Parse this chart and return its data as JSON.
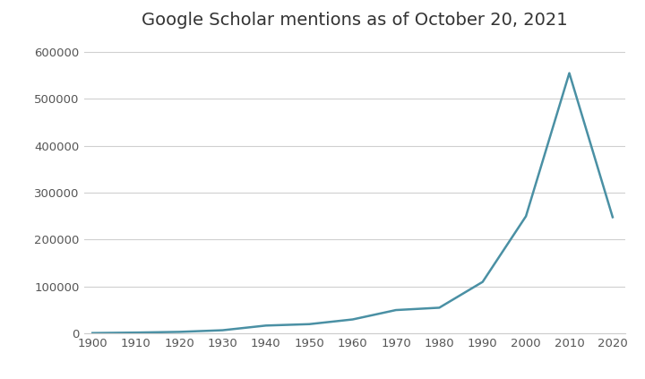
{
  "title": "Google Scholar mentions as of October 20, 2021",
  "title_fontsize": 14,
  "x": [
    1900,
    1910,
    1920,
    1930,
    1940,
    1950,
    1960,
    1970,
    1980,
    1990,
    2000,
    2010,
    2020
  ],
  "y": [
    1000,
    2000,
    3500,
    7000,
    17000,
    20000,
    30000,
    50000,
    55000,
    110000,
    250000,
    555000,
    248000
  ],
  "line_color": "#4a90a4",
  "line_width": 1.8,
  "xlim": [
    1898,
    2023
  ],
  "ylim": [
    0,
    630000
  ],
  "xticks": [
    1900,
    1910,
    1920,
    1930,
    1940,
    1950,
    1960,
    1970,
    1980,
    1990,
    2000,
    2010,
    2020
  ],
  "yticks": [
    0,
    100000,
    200000,
    300000,
    400000,
    500000,
    600000
  ],
  "grid_color": "#d0d0d0",
  "bg_color": "#ffffff",
  "tick_label_color": "#555555",
  "tick_label_size": 9.5
}
